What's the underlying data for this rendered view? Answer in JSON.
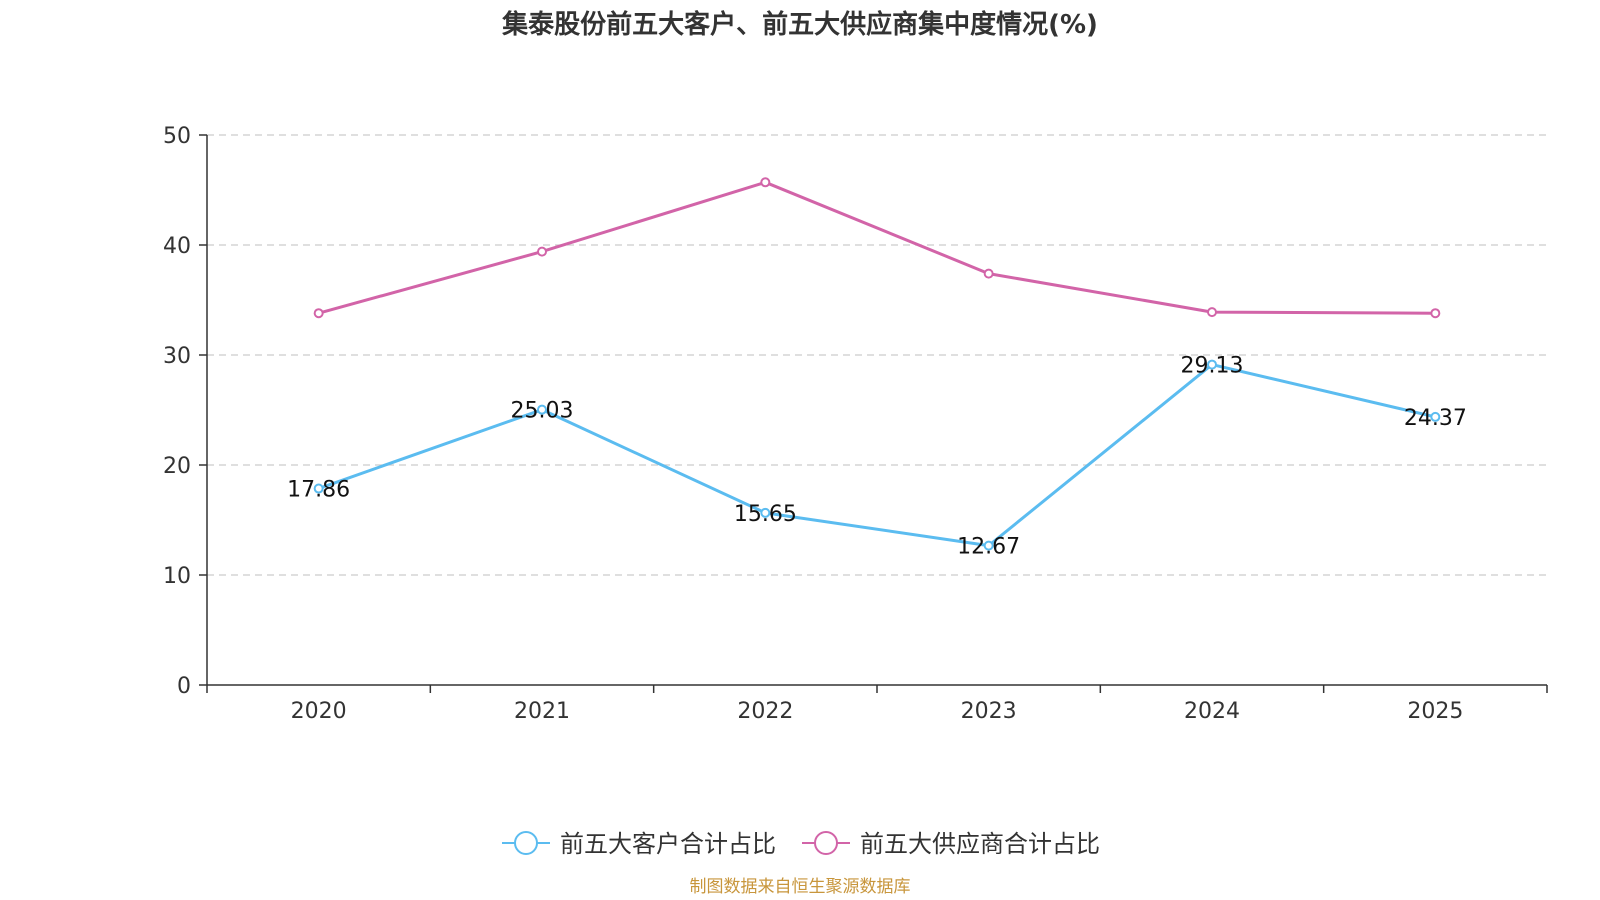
{
  "chart_data": {
    "type": "line",
    "title": "集泰股份前五大客户、前五大供应商集中度情况(%)",
    "categories": [
      "2020",
      "2021",
      "2022",
      "2023",
      "2024",
      "2025"
    ],
    "ylim": [
      0,
      50
    ],
    "yticks": [
      0,
      10,
      20,
      30,
      40,
      50
    ],
    "grid": true,
    "legend_position": "bottom-center",
    "series": [
      {
        "name": "前五大客户合计占比",
        "color": "#5bbcf0",
        "values": [
          17.86,
          25.03,
          15.65,
          12.67,
          29.13,
          24.37
        ],
        "labels": [
          "17.86",
          "25.03",
          "15.65",
          "12.67",
          "29.13",
          "24.37"
        ],
        "show_labels": true
      },
      {
        "name": "前五大供应商合计占比",
        "color": "#d264a8",
        "values": [
          33.8,
          39.4,
          45.7,
          37.4,
          33.9,
          33.8
        ],
        "show_labels": false
      }
    ]
  },
  "source": "制图数据来自恒生聚源数据库",
  "source_color": "#c8963c"
}
